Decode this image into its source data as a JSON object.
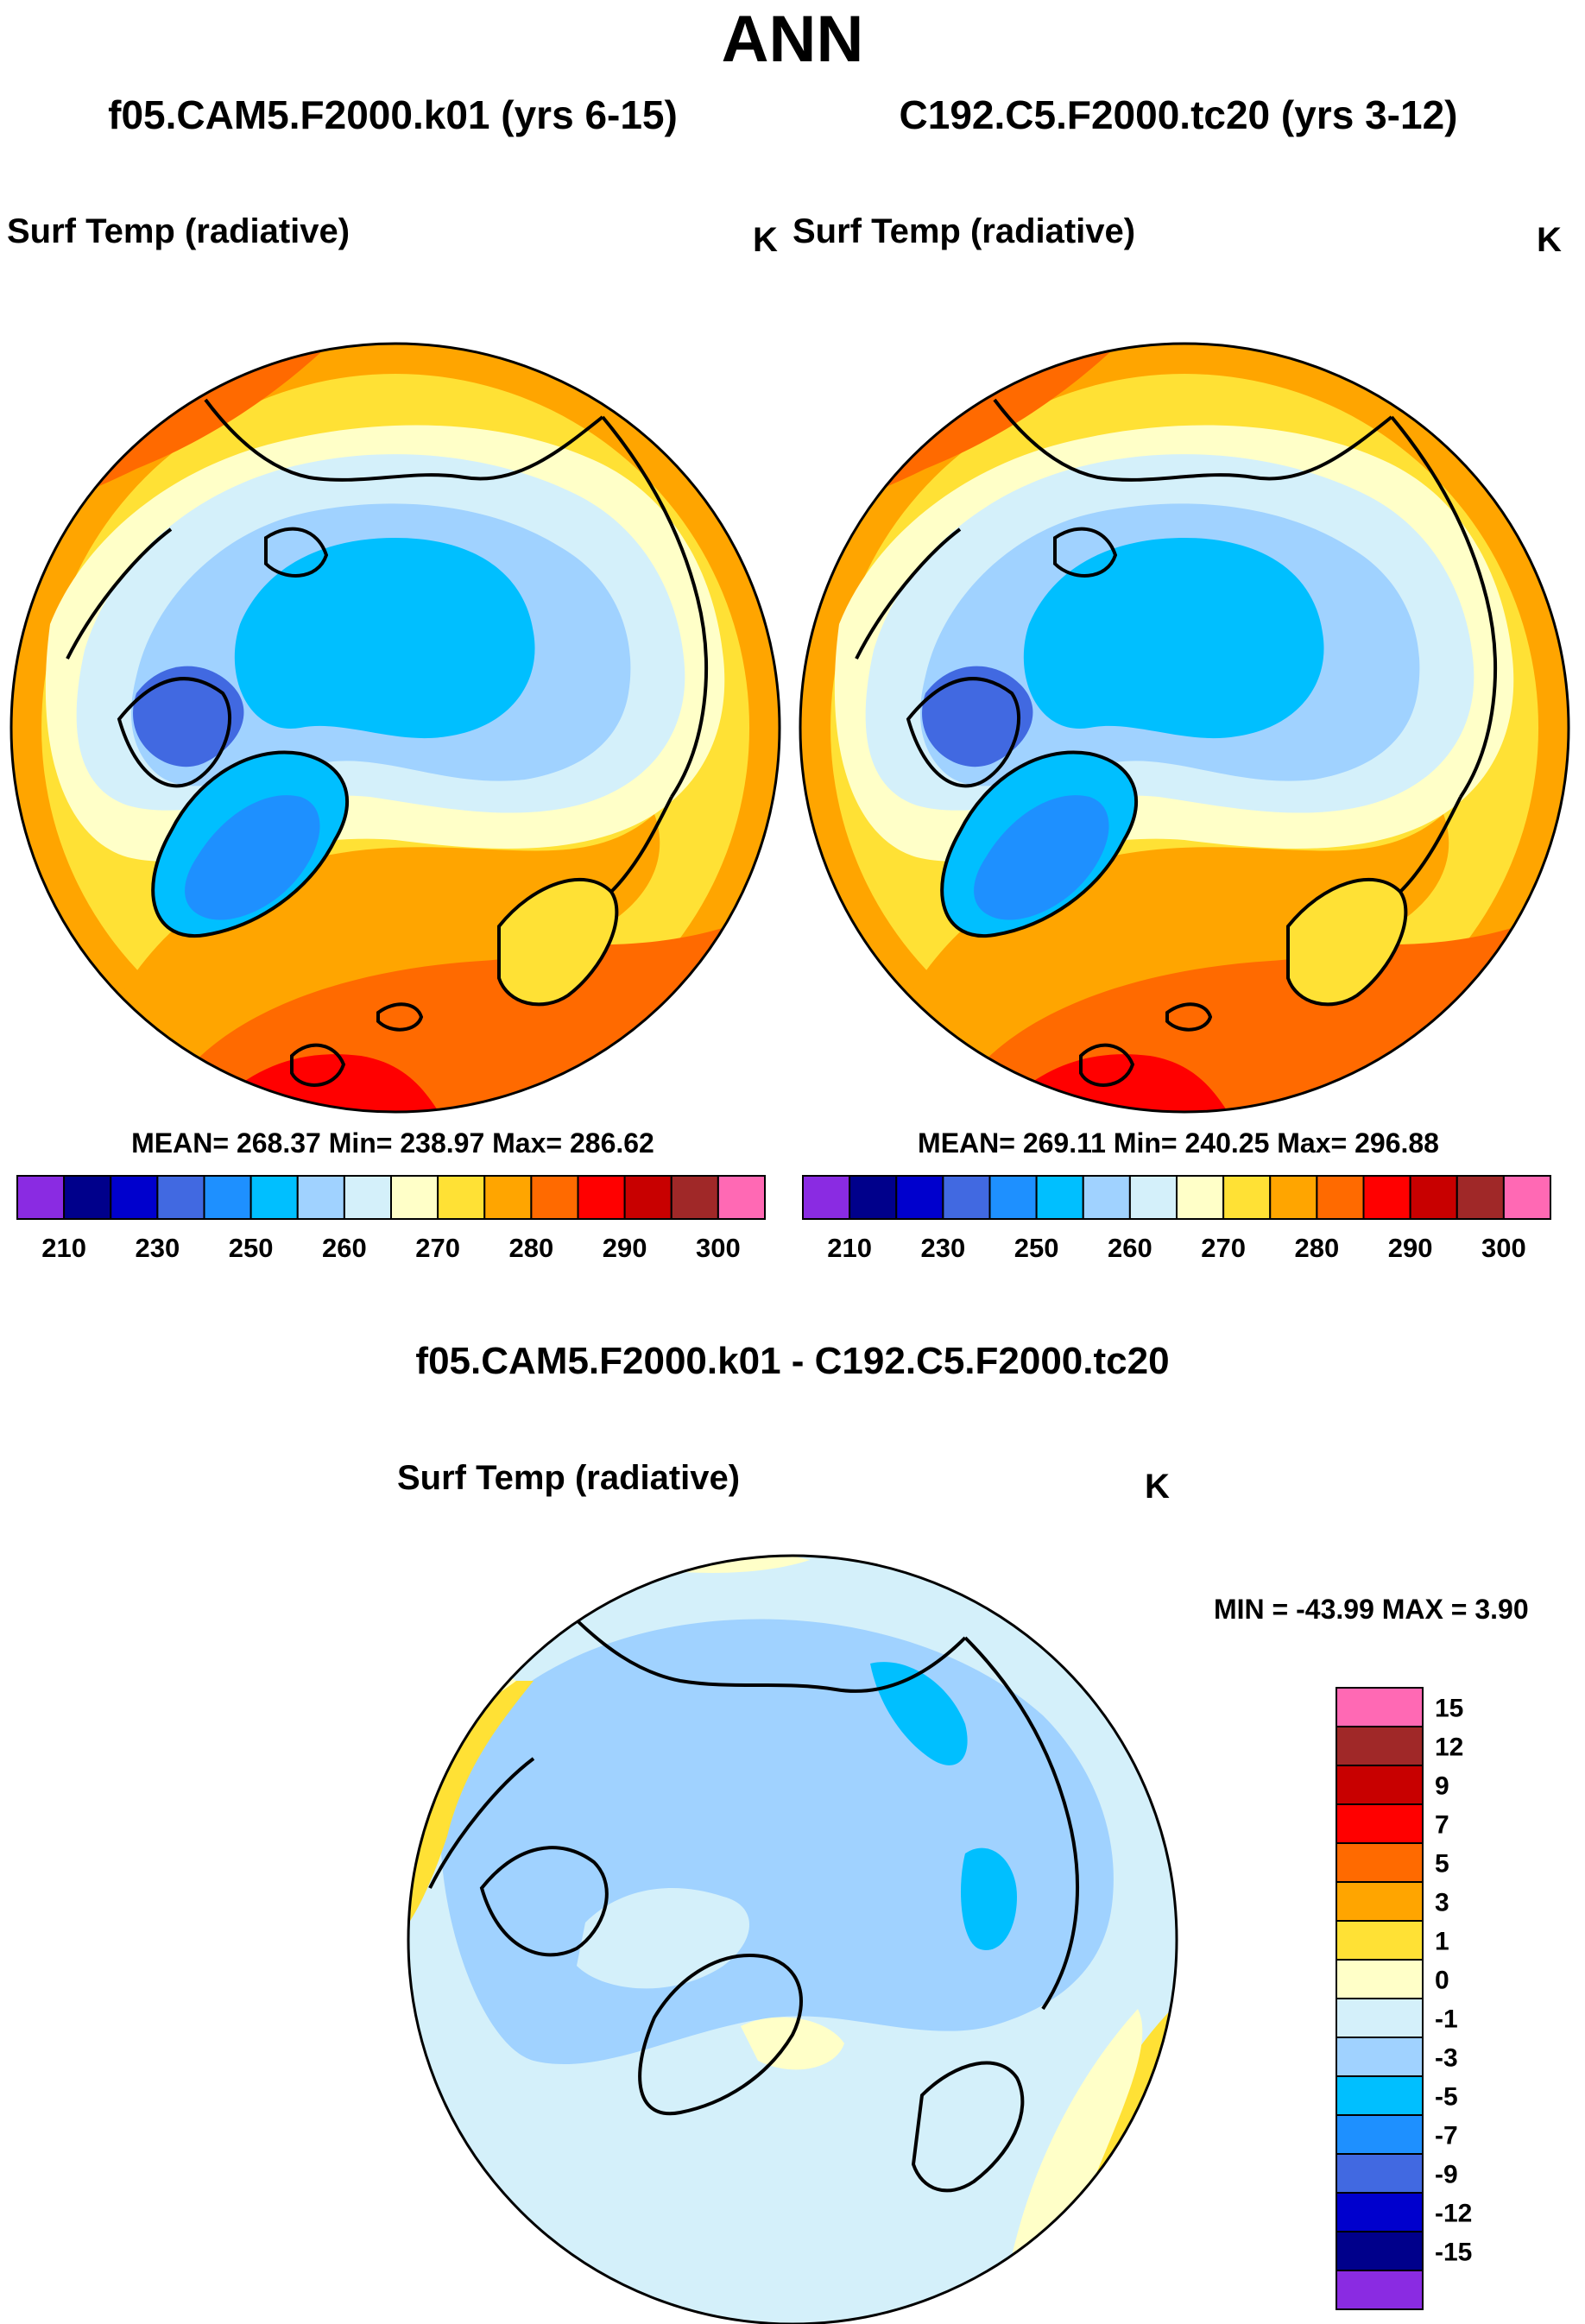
{
  "title": "ANN",
  "panel1": {
    "case": "f05.CAM5.F2000.k01 (yrs 6-15)",
    "variable": "Surf Temp (radiative)",
    "units": "K",
    "stats": "MEAN= 268.37  Min= 238.97  Max= 286.62"
  },
  "panel2": {
    "case": "C192.C5.F2000.tc20 (yrs 3-12)",
    "variable": "Surf Temp (radiative)",
    "units": "K",
    "stats": "MEAN= 269.11  Min= 240.25  Max= 296.88"
  },
  "diff": {
    "title": "f05.CAM5.F2000.k01 - C192.C5.F2000.tc20",
    "variable": "Surf Temp (radiative)",
    "units": "K",
    "minmax": "MIN = -43.99 MAX =   3.90"
  },
  "chart_data": [
    {
      "type": "heatmap",
      "projection": "north polar stereographic",
      "title": "f05.CAM5.F2000.k01 (yrs 6-15)",
      "variable": "Surf Temp (radiative)",
      "units": "K",
      "mean": 268.37,
      "min": 238.97,
      "max": 286.62,
      "levels": [
        210,
        220,
        230,
        240,
        250,
        255,
        260,
        265,
        270,
        275,
        280,
        285,
        290,
        295,
        300
      ],
      "tick_labels": [
        "210",
        "230",
        "250",
        "260",
        "270",
        "280",
        "290",
        "300"
      ],
      "colors": [
        "#8a2be2",
        "#00008b",
        "#0000cd",
        "#4169e1",
        "#1e90ff",
        "#00bfff",
        "#a0d2ff",
        "#d4f0fa",
        "#ffffc8",
        "#ffe135",
        "#ffa500",
        "#ff6a00",
        "#ff0000",
        "#c80000",
        "#a02828",
        "#ff69b4"
      ]
    },
    {
      "type": "heatmap",
      "projection": "north polar stereographic",
      "title": "C192.C5.F2000.tc20 (yrs 3-12)",
      "variable": "Surf Temp (radiative)",
      "units": "K",
      "mean": 269.11,
      "min": 240.25,
      "max": 296.88,
      "levels": [
        210,
        220,
        230,
        240,
        250,
        255,
        260,
        265,
        270,
        275,
        280,
        285,
        290,
        295,
        300
      ],
      "tick_labels": [
        "210",
        "230",
        "250",
        "260",
        "270",
        "280",
        "290",
        "300"
      ],
      "colors": [
        "#8a2be2",
        "#00008b",
        "#0000cd",
        "#4169e1",
        "#1e90ff",
        "#00bfff",
        "#a0d2ff",
        "#d4f0fa",
        "#ffffc8",
        "#ffe135",
        "#ffa500",
        "#ff6a00",
        "#ff0000",
        "#c80000",
        "#a02828",
        "#ff69b4"
      ]
    },
    {
      "type": "heatmap",
      "projection": "north polar stereographic",
      "title": "f05.CAM5.F2000.k01 - C192.C5.F2000.tc20",
      "variable": "Surf Temp (radiative)",
      "units": "K",
      "min": -43.99,
      "max": 3.9,
      "levels": [
        -15,
        -12,
        -9,
        -7,
        -5,
        -3,
        -1,
        0,
        1,
        3,
        5,
        7,
        9,
        12,
        15
      ],
      "tick_labels": [
        "15",
        "12",
        "9",
        "7",
        "5",
        "3",
        "1",
        "0",
        "-1",
        "-3",
        "-5",
        "-7",
        "-9",
        "-12",
        "-15"
      ],
      "colors": [
        "#ff69b4",
        "#a02828",
        "#c80000",
        "#ff0000",
        "#ff6a00",
        "#ffa500",
        "#ffe135",
        "#ffffc8",
        "#d4f0fa",
        "#a0d2ff",
        "#00bfff",
        "#1e90ff",
        "#4169e1",
        "#0000cd",
        "#00008b",
        "#8a2be2"
      ]
    }
  ]
}
